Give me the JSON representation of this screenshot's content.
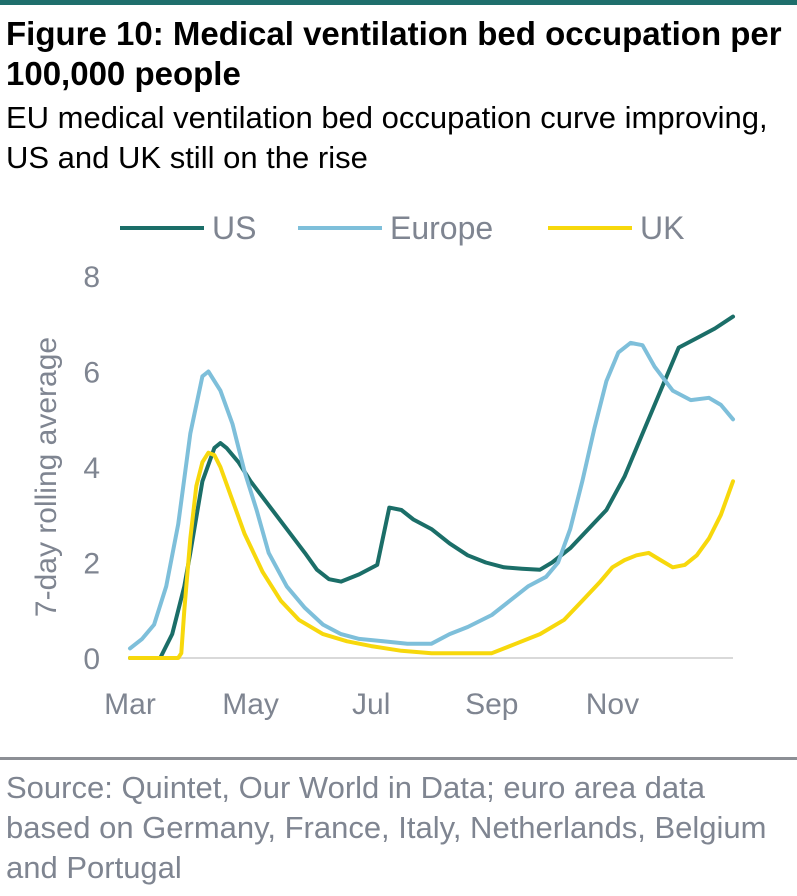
{
  "figure": {
    "title": "Figure 10: Medical ventilation bed occupation per 100,000 people",
    "subtitle": "EU medical ventilation bed occupation curve improving, US and UK still on the rise",
    "source": "Source: Quintet, Our World in Data; euro area data based on Germany, France, Italy, Netherlands, Belgium and Portugal"
  },
  "colors": {
    "US": "#1b6e68",
    "Europe": "#7ebfda",
    "UK": "#f7d80c",
    "axis_text": "#7f8591",
    "top_rule": "#1f6f6c"
  },
  "chart_data": {
    "type": "line",
    "title": "",
    "xlabel": "",
    "ylabel": "7-day rolling average",
    "x_unit": "months since 1 Mar",
    "x_ticks": [
      {
        "label": "Mar",
        "x": 0
      },
      {
        "label": "May",
        "x": 2
      },
      {
        "label": "Jul",
        "x": 4
      },
      {
        "label": "Sep",
        "x": 6
      },
      {
        "label": "Nov",
        "x": 8
      }
    ],
    "xlim": [
      0,
      10
    ],
    "ylim": [
      0,
      8
    ],
    "y_ticks": [
      0,
      2,
      4,
      6,
      8
    ],
    "grid": false,
    "legend_position": "top",
    "series": [
      {
        "name": "US",
        "x": [
          0,
          0.5,
          0.7,
          0.9,
          1.0,
          1.2,
          1.4,
          1.5,
          1.6,
          1.8,
          2.0,
          2.3,
          2.6,
          2.9,
          3.1,
          3.3,
          3.5,
          3.8,
          4.1,
          4.3,
          4.5,
          4.7,
          5.0,
          5.3,
          5.6,
          5.9,
          6.2,
          6.5,
          6.8,
          7.0,
          7.3,
          7.6,
          7.9,
          8.2,
          8.5,
          8.8,
          9.1,
          9.4,
          9.7,
          10.0
        ],
        "y": [
          0,
          0,
          0.5,
          1.5,
          2.2,
          3.7,
          4.4,
          4.5,
          4.4,
          4.1,
          3.7,
          3.2,
          2.7,
          2.2,
          1.85,
          1.65,
          1.6,
          1.75,
          1.95,
          3.15,
          3.1,
          2.9,
          2.7,
          2.4,
          2.15,
          2.0,
          1.9,
          1.87,
          1.85,
          2.0,
          2.3,
          2.7,
          3.1,
          3.8,
          4.7,
          5.6,
          6.5,
          6.7,
          6.9,
          7.15
        ]
      },
      {
        "name": "Europe",
        "x": [
          0,
          0.2,
          0.4,
          0.6,
          0.8,
          1.0,
          1.2,
          1.3,
          1.5,
          1.7,
          1.9,
          2.1,
          2.3,
          2.6,
          2.9,
          3.2,
          3.5,
          3.8,
          4.2,
          4.6,
          5.0,
          5.3,
          5.6,
          6.0,
          6.3,
          6.6,
          6.9,
          7.1,
          7.3,
          7.5,
          7.7,
          7.9,
          8.1,
          8.3,
          8.5,
          8.7,
          9.0,
          9.3,
          9.6,
          9.8,
          10.0
        ],
        "y": [
          0.2,
          0.4,
          0.7,
          1.5,
          2.8,
          4.7,
          5.9,
          6.0,
          5.6,
          4.9,
          3.9,
          3.1,
          2.2,
          1.5,
          1.05,
          0.7,
          0.5,
          0.4,
          0.35,
          0.3,
          0.3,
          0.5,
          0.65,
          0.9,
          1.2,
          1.5,
          1.7,
          2.0,
          2.7,
          3.7,
          4.8,
          5.8,
          6.4,
          6.6,
          6.55,
          6.1,
          5.6,
          5.4,
          5.45,
          5.3,
          5.0
        ]
      },
      {
        "name": "UK",
        "x": [
          0,
          0.8,
          0.85,
          0.9,
          1.0,
          1.1,
          1.2,
          1.3,
          1.4,
          1.5,
          1.7,
          1.9,
          2.2,
          2.5,
          2.8,
          3.2,
          3.6,
          4.0,
          4.5,
          5.0,
          5.5,
          6.0,
          6.4,
          6.8,
          7.2,
          7.5,
          7.8,
          8.0,
          8.2,
          8.4,
          8.6,
          8.8,
          9.0,
          9.2,
          9.4,
          9.6,
          9.8,
          10.0
        ],
        "y": [
          0,
          0,
          0.1,
          1.0,
          2.5,
          3.6,
          4.1,
          4.3,
          4.25,
          4.0,
          3.3,
          2.6,
          1.8,
          1.2,
          0.8,
          0.5,
          0.35,
          0.25,
          0.15,
          0.1,
          0.1,
          0.1,
          0.3,
          0.5,
          0.8,
          1.2,
          1.6,
          1.9,
          2.05,
          2.15,
          2.2,
          2.05,
          1.9,
          1.95,
          2.15,
          2.5,
          3.0,
          3.7
        ]
      }
    ]
  }
}
